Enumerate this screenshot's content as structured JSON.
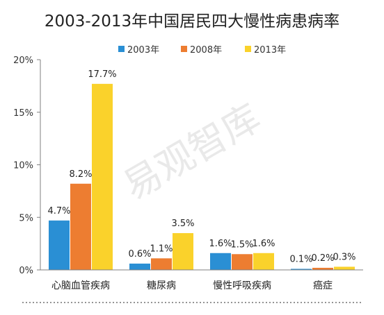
{
  "chart_data": {
    "type": "bar",
    "title": "2003-2013年中国居民四大慢性病患病率",
    "categories": [
      "心脑血管疾病",
      "糖尿病",
      "慢性呼吸疾病",
      "癌症"
    ],
    "series": [
      {
        "name": "2003年",
        "color": "#2a8fd4",
        "values": [
          4.7,
          0.6,
          1.6,
          0.1
        ],
        "labels": [
          "4.7%",
          "0.6%",
          "1.6%",
          "0.1%"
        ]
      },
      {
        "name": "2008年",
        "color": "#ed7d31",
        "values": [
          8.2,
          1.1,
          1.5,
          0.2
        ],
        "labels": [
          "8.2%",
          "1.1%",
          "1.5%",
          "0.2%"
        ]
      },
      {
        "name": "2013年",
        "color": "#fad22b",
        "values": [
          17.7,
          3.5,
          1.6,
          0.3
        ],
        "labels": [
          "17.7%",
          "3.5%",
          "1.6%",
          "0.3%"
        ]
      }
    ],
    "ylim": [
      0,
      20
    ],
    "yticks": [
      0,
      5,
      10,
      15,
      20
    ],
    "ytick_labels": [
      "0%",
      "5%",
      "10%",
      "15%",
      "20%"
    ],
    "legend_position": "top-center",
    "grid": false,
    "xlabel": "",
    "ylabel": "",
    "watermark": "易观智库"
  }
}
